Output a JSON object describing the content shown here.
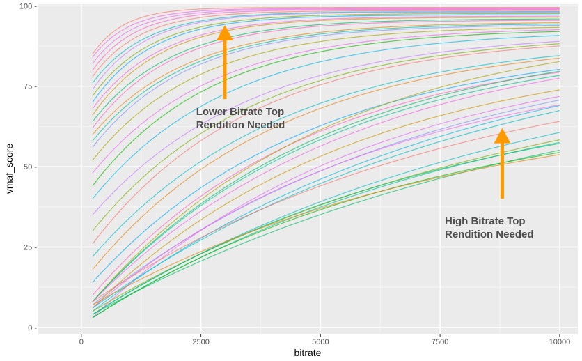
{
  "chart_data": {
    "type": "line",
    "xlabel": "bitrate",
    "ylabel": "vmaf_score",
    "xlim": [
      -900,
      10380
    ],
    "ylim": [
      -2,
      100.5
    ],
    "x_ticks": [
      0,
      2500,
      5000,
      7500,
      10000
    ],
    "x_tick_labels": [
      "0",
      "2500",
      "5000",
      "7500",
      "10000"
    ],
    "y_ticks": [
      0,
      25,
      50,
      75,
      100
    ],
    "y_tick_labels": [
      "0 -",
      "25 -",
      "50 -",
      "75 -",
      "100 -"
    ],
    "grid": true,
    "legend": "none",
    "x_range": [
      235,
      10000
    ],
    "curve_model": "vmaf = vmax - (vmax - v0) * exp(-k * (bitrate - 235))",
    "series": [
      {
        "v0": 85,
        "vmax": 99.5,
        "k": 0.0015,
        "color": "#F8766D"
      },
      {
        "v0": 84,
        "vmax": 99.2,
        "k": 0.0013,
        "color": "#F564E3"
      },
      {
        "v0": 82,
        "vmax": 99.0,
        "k": 0.0012,
        "color": "#E76BF3"
      },
      {
        "v0": 80,
        "vmax": 98.8,
        "k": 0.0011,
        "color": "#FF61C3"
      },
      {
        "v0": 78,
        "vmax": 98.5,
        "k": 0.001,
        "color": "#F8766D"
      },
      {
        "v0": 76,
        "vmax": 98.2,
        "k": 0.0009,
        "color": "#00BFC4"
      },
      {
        "v0": 74,
        "vmax": 98.0,
        "k": 0.0009,
        "color": "#C77CFF"
      },
      {
        "v0": 72,
        "vmax": 97.6,
        "k": 0.0008,
        "color": "#7CAE00"
      },
      {
        "v0": 70,
        "vmax": 97.2,
        "k": 0.0008,
        "color": "#00A9FF"
      },
      {
        "v0": 68,
        "vmax": 96.8,
        "k": 0.0007,
        "color": "#F564E3"
      },
      {
        "v0": 66,
        "vmax": 96.5,
        "k": 0.0007,
        "color": "#CD9600"
      },
      {
        "v0": 64,
        "vmax": 96.0,
        "k": 0.0006,
        "color": "#00BE67"
      },
      {
        "v0": 62,
        "vmax": 95.6,
        "k": 0.0006,
        "color": "#FF61C3"
      },
      {
        "v0": 60,
        "vmax": 95.0,
        "k": 0.0005,
        "color": "#E68613"
      },
      {
        "v0": 58,
        "vmax": 94.6,
        "k": 0.0005,
        "color": "#00C19A"
      },
      {
        "v0": 56,
        "vmax": 94.2,
        "k": 0.0005,
        "color": "#8494FF"
      },
      {
        "v0": 52,
        "vmax": 93.8,
        "k": 0.00045,
        "color": "#ABA300"
      },
      {
        "v0": 48,
        "vmax": 93.5,
        "k": 0.0004,
        "color": "#ED68ED"
      },
      {
        "v0": 44,
        "vmax": 93.0,
        "k": 0.0004,
        "color": "#0CB702"
      },
      {
        "v0": 40,
        "vmax": 92.5,
        "k": 0.00035,
        "color": "#00B8E7"
      },
      {
        "v0": 35,
        "vmax": 92.0,
        "k": 0.0003,
        "color": "#C77CFF"
      },
      {
        "v0": 30,
        "vmax": 91.5,
        "k": 0.0003,
        "color": "#7CAE00"
      },
      {
        "v0": 26,
        "vmax": 91.0,
        "k": 0.0003,
        "color": "#F8766D"
      },
      {
        "v0": 22,
        "vmax": 90.5,
        "k": 0.00025,
        "color": "#00BFC4"
      },
      {
        "v0": 18,
        "vmax": 90.0,
        "k": 0.00025,
        "color": "#E68613"
      },
      {
        "v0": 14,
        "vmax": 89.0,
        "k": 0.00022,
        "color": "#00A9FF"
      },
      {
        "v0": 10,
        "vmax": 88.5,
        "k": 0.00022,
        "color": "#FF61C3"
      },
      {
        "v0": 8,
        "vmax": 91.5,
        "k": 0.0002,
        "color": "#00BE67"
      },
      {
        "v0": 8,
        "vmax": 95.0,
        "k": 0.0002,
        "color": "#ABA300"
      },
      {
        "v0": 8,
        "vmax": 92.0,
        "k": 0.00018,
        "color": "#F564E3"
      },
      {
        "v0": 7,
        "vmax": 92.5,
        "k": 0.00014,
        "color": "#8494FF"
      },
      {
        "v0": 8,
        "vmax": 90.0,
        "k": 0.0002,
        "color": "#00C19A"
      },
      {
        "v0": 6,
        "vmax": 88.0,
        "k": 0.00018,
        "color": "#CD9600"
      },
      {
        "v0": 6,
        "vmax": 86.0,
        "k": 0.00016,
        "color": "#ED68ED"
      },
      {
        "v0": 5,
        "vmax": 94.0,
        "k": 0.00013,
        "color": "#00B8E7"
      },
      {
        "v0": 3,
        "vmax": 88.0,
        "k": 0.00017,
        "color": "#E76BF3"
      },
      {
        "v0": 6,
        "vmax": 95.0,
        "k": 0.00012,
        "color": "#00BFC4"
      },
      {
        "v0": 4,
        "vmax": 90.0,
        "k": 0.00011,
        "color": "#00BFC4"
      },
      {
        "v0": 8,
        "vmax": 86.0,
        "k": 0.00013,
        "color": "#F8766D"
      },
      {
        "v0": 5,
        "vmax": 86.0,
        "k": 0.00011,
        "color": "#7CAE00"
      },
      {
        "v0": 4,
        "vmax": 86.0,
        "k": 0.0001,
        "color": "#00BE67"
      },
      {
        "v0": 3,
        "vmax": 82.0,
        "k": 0.00012,
        "color": "#00C19A"
      },
      {
        "v0": 4,
        "vmax": 78.0,
        "k": 0.00013,
        "color": "#00BE67"
      },
      {
        "v0": 3,
        "vmax": 72.0,
        "k": 0.00014,
        "color": "#0CB702"
      },
      {
        "v0": 7,
        "vmax": 72.0,
        "k": 0.00013,
        "color": "#E68613"
      }
    ],
    "annotations": [
      {
        "lines": [
          "Lower Bitrate Top",
          "Rendition Needed"
        ],
        "x": 2400,
        "y": 66
      },
      {
        "lines": [
          "High Bitrate Top",
          "Rendition Needed"
        ],
        "x": 7600,
        "y": 32
      }
    ],
    "arrows": [
      {
        "x": 3000,
        "y_from": 71,
        "y_to": 94,
        "color": "#FF9900"
      },
      {
        "x": 8800,
        "y_from": 40,
        "y_to": 62,
        "color": "#FF9900"
      }
    ],
    "colors": {
      "panel_background": "#EBEBEB",
      "major_grid": "#FFFFFF",
      "minor_grid": "#F5F5F5",
      "arrow": "#FF9900"
    }
  }
}
